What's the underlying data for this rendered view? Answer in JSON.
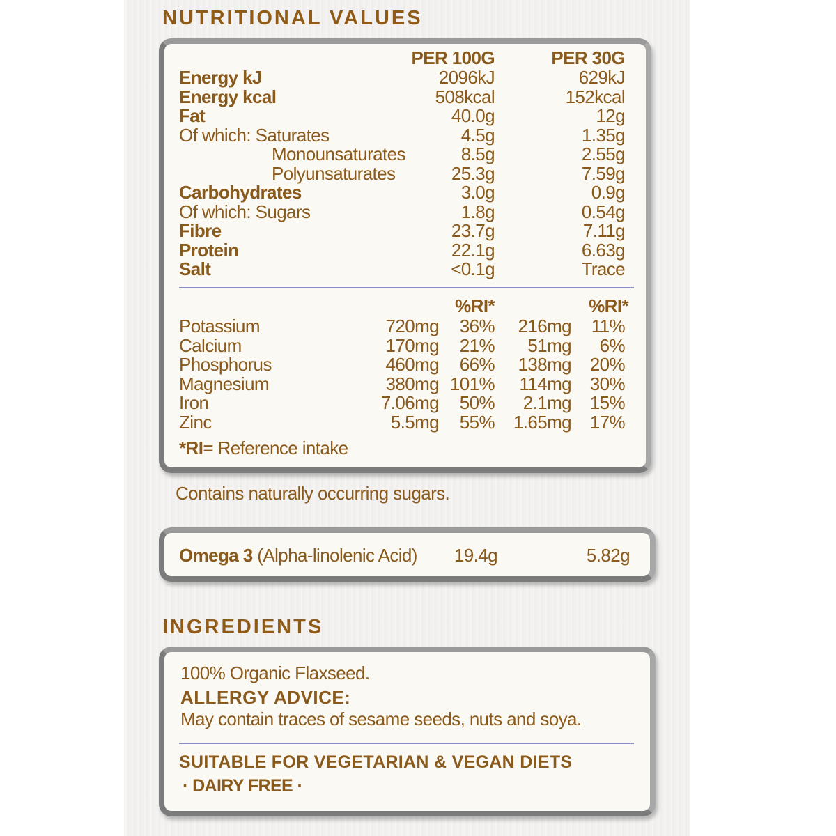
{
  "nutrition": {
    "title": "NUTRITIONAL VALUES",
    "col_headers": [
      "PER 100G",
      "PER 30G"
    ],
    "rows": [
      {
        "label": "Energy kJ",
        "bold": true,
        "indent": 0,
        "per100": "2096kJ",
        "per30": "629kJ"
      },
      {
        "label": "Energy kcal",
        "bold": true,
        "indent": 0,
        "per100": "508kcal",
        "per30": "152kcal"
      },
      {
        "label": "Fat",
        "bold": true,
        "indent": 0,
        "per100": "40.0g",
        "per30": "12g"
      },
      {
        "label": "Of which: Saturates",
        "bold": false,
        "indent": 0,
        "per100": "4.5g",
        "per30": "1.35g"
      },
      {
        "label": "Monounsaturates",
        "bold": false,
        "indent": 1,
        "per100": "8.5g",
        "per30": "2.55g"
      },
      {
        "label": "Polyunsaturates",
        "bold": false,
        "indent": 1,
        "per100": "25.3g",
        "per30": "7.59g"
      },
      {
        "label": "Carbohydrates",
        "bold": true,
        "indent": 0,
        "per100": "3.0g",
        "per30": "0.9g"
      },
      {
        "label": "Of which: Sugars",
        "bold": false,
        "indent": 0,
        "per100": "1.8g",
        "per30": "0.54g"
      },
      {
        "label": "Fibre",
        "bold": true,
        "indent": 0,
        "per100": "23.7g",
        "per30": "7.11g"
      },
      {
        "label": "Protein",
        "bold": true,
        "indent": 0,
        "per100": "22.1g",
        "per30": "6.63g"
      },
      {
        "label": "Salt",
        "bold": true,
        "indent": 0,
        "per100": "<0.1g",
        "per30": "Trace"
      }
    ],
    "ri_header": "%RI*",
    "minerals": [
      {
        "label": "Potassium",
        "per100": "720mg",
        "ri100": "36%",
        "per30": "216mg",
        "ri30": "11%"
      },
      {
        "label": "Calcium",
        "per100": "170mg",
        "ri100": "21%",
        "per30": "51mg",
        "ri30": "6%"
      },
      {
        "label": "Phosphorus",
        "per100": "460mg",
        "ri100": "66%",
        "per30": "138mg",
        "ri30": "20%"
      },
      {
        "label": "Magnesium",
        "per100": "380mg",
        "ri100": "101%",
        "per30": "114mg",
        "ri30": "30%"
      },
      {
        "label": "Iron",
        "per100": "7.06mg",
        "ri100": "50%",
        "per30": "2.1mg",
        "ri30": "15%"
      },
      {
        "label": "Zinc",
        "per100": "5.5mg",
        "ri100": "55%",
        "per30": "1.65mg",
        "ri30": "17%"
      }
    ],
    "footnote_key": "*RI",
    "footnote_text": "= Reference intake"
  },
  "sugar_note": "Contains naturally occurring sugars.",
  "omega": {
    "label": "Omega 3",
    "sub": "(Alpha-linolenic Acid)",
    "per100": "19.4g",
    "per30": "5.82g"
  },
  "ingredients": {
    "title": "INGREDIENTS",
    "text": "100% Organic Flaxseed.",
    "allergy_title": "ALLERGY ADVICE:",
    "allergy_text": "May contain traces of sesame seeds, nuts and soya.",
    "suitable": "SUITABLE FOR VEGETARIAN & VEGAN DIETS",
    "dairy": "· DAIRY FREE ·"
  },
  "colors": {
    "text": "#8a5a1c",
    "divider": "#8d8fc4",
    "box_border": "#7b7b7b",
    "box_fill": "#fbf9f3"
  }
}
